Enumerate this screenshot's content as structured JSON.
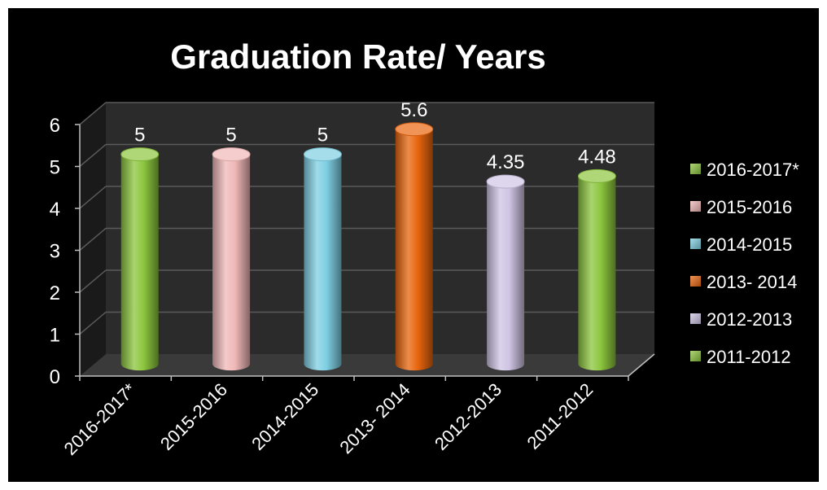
{
  "chart_data": {
    "type": "bar",
    "style": "3d-cylinder",
    "title": "Graduation Rate/ Years",
    "xlabel": "",
    "ylabel": "",
    "categories": [
      "2016-2017*",
      "2015-2016",
      "2014-2015",
      "2013- 2014",
      "2012-2013",
      "2011-2012"
    ],
    "values": [
      5,
      5,
      5,
      5.6,
      4.35,
      4.48
    ],
    "data_labels": [
      "5",
      "5",
      "5",
      "5.6",
      "4.35",
      "4.48"
    ],
    "colors": [
      "#8cc63e",
      "#f0b8b8",
      "#7fcfe3",
      "#e8650e",
      "#cfc4e4",
      "#8cc63e"
    ],
    "ylim": [
      0,
      6
    ],
    "yticks": [
      "0",
      "1",
      "2",
      "3",
      "4",
      "5",
      "6"
    ],
    "grid": true,
    "legend_position": "right",
    "legend": [
      "2016-2017*",
      "2015-2016",
      "2014-2015",
      "2013- 2014",
      "2012-2013",
      "2011-2012"
    ],
    "background": "#000000"
  }
}
